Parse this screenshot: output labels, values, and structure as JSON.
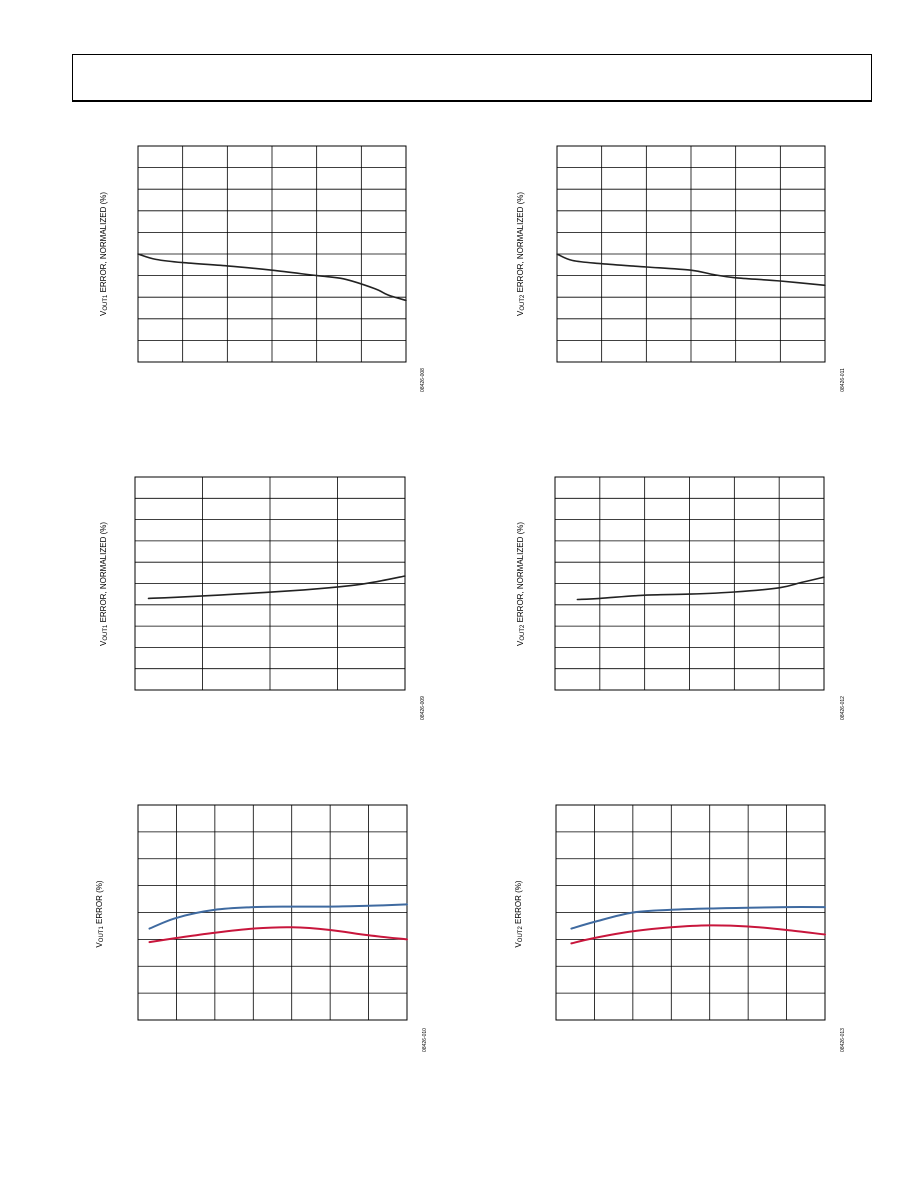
{
  "page": {
    "header": ""
  },
  "chart_data": [
    {
      "id": "c1",
      "type": "line",
      "ylabel_pre": "V",
      "ylabel_sub": "OUT1",
      "ylabel_post": " ERROR, NORMALIZED (%)",
      "fig_number": "08426-008",
      "x_divisions": 6,
      "y_divisions": 10,
      "xlim": [
        0,
        6
      ],
      "ylim": [
        -5,
        5
      ],
      "series": [
        {
          "color": "#222222",
          "x": [
            0,
            0.4,
            1,
            2,
            3,
            4,
            4.6,
            5.3,
            5.6,
            6
          ],
          "y": [
            0,
            -0.25,
            -0.4,
            -0.55,
            -0.75,
            -1.0,
            -1.15,
            -1.6,
            -1.9,
            -2.15
          ]
        }
      ]
    },
    {
      "id": "c2",
      "type": "line",
      "ylabel_pre": "V",
      "ylabel_sub": "OUT2",
      "ylabel_post": " ERROR, NORMALIZED (%)",
      "fig_number": "08426-011",
      "x_divisions": 6,
      "y_divisions": 10,
      "xlim": [
        0,
        6
      ],
      "ylim": [
        -5,
        5
      ],
      "series": [
        {
          "color": "#222222",
          "x": [
            0,
            0.35,
            1,
            2,
            3,
            3.5,
            4,
            5,
            6
          ],
          "y": [
            0,
            -0.3,
            -0.45,
            -0.6,
            -0.75,
            -0.95,
            -1.1,
            -1.25,
            -1.45
          ]
        }
      ]
    },
    {
      "id": "c3",
      "type": "line",
      "ylabel_pre": "V",
      "ylabel_sub": "OUT1",
      "ylabel_post": " ERROR, NORMALIZED (%)",
      "fig_number": "08426-009",
      "x_divisions": 4,
      "y_divisions": 10,
      "xlim": [
        0,
        4
      ],
      "ylim": [
        -5,
        5
      ],
      "series": [
        {
          "color": "#222222",
          "x": [
            0.2,
            0.6,
            1.5,
            2.5,
            3.2,
            3.6,
            4
          ],
          "y": [
            -0.7,
            -0.65,
            -0.5,
            -0.3,
            -0.1,
            0.1,
            0.35
          ]
        }
      ]
    },
    {
      "id": "c4",
      "type": "line",
      "ylabel_pre": "V",
      "ylabel_sub": "OUT2",
      "ylabel_post": " ERROR, NORMALIZED (%)",
      "fig_number": "08426-012",
      "x_divisions": 6,
      "y_divisions": 10,
      "xlim": [
        0,
        6
      ],
      "ylim": [
        -5,
        5
      ],
      "series": [
        {
          "color": "#222222",
          "x": [
            0.5,
            1,
            2,
            3,
            4,
            5,
            5.5,
            6
          ],
          "y": [
            -0.75,
            -0.7,
            -0.55,
            -0.5,
            -0.4,
            -0.2,
            0.05,
            0.3
          ]
        }
      ]
    },
    {
      "id": "c5",
      "type": "line",
      "ylabel_pre": "V",
      "ylabel_sub": "OUT1",
      "ylabel_post": " ERROR (%)",
      "fig_number": "08426-010",
      "x_divisions": 7,
      "y_divisions": 8,
      "xlim": [
        0,
        7
      ],
      "ylim": [
        -4,
        4
      ],
      "series": [
        {
          "color": "#3f6aa0",
          "x": [
            0.3,
            1,
            2,
            3,
            4,
            5,
            6,
            7
          ],
          "y": [
            -0.6,
            -0.2,
            0.1,
            0.2,
            0.22,
            0.22,
            0.25,
            0.3
          ]
        },
        {
          "color": "#c8163c",
          "x": [
            0.3,
            1,
            2,
            3,
            4,
            5,
            6,
            7
          ],
          "y": [
            -1.1,
            -0.95,
            -0.75,
            -0.6,
            -0.55,
            -0.65,
            -0.85,
            -1.0
          ]
        }
      ]
    },
    {
      "id": "c6",
      "type": "line",
      "ylabel_pre": "V",
      "ylabel_sub": "OUT2",
      "ylabel_post": " ERROR (%)",
      "fig_number": "08426-013",
      "x_divisions": 7,
      "y_divisions": 8,
      "xlim": [
        0,
        7
      ],
      "ylim": [
        -4,
        4
      ],
      "series": [
        {
          "color": "#3f6aa0",
          "x": [
            0.4,
            1,
            2,
            3,
            4,
            5,
            6,
            7
          ],
          "y": [
            -0.6,
            -0.35,
            0.0,
            0.1,
            0.15,
            0.18,
            0.2,
            0.2
          ]
        },
        {
          "color": "#c8163c",
          "x": [
            0.4,
            1,
            2,
            3,
            4,
            5,
            6,
            7
          ],
          "y": [
            -1.15,
            -0.95,
            -0.7,
            -0.55,
            -0.48,
            -0.52,
            -0.65,
            -0.82
          ]
        }
      ]
    }
  ]
}
